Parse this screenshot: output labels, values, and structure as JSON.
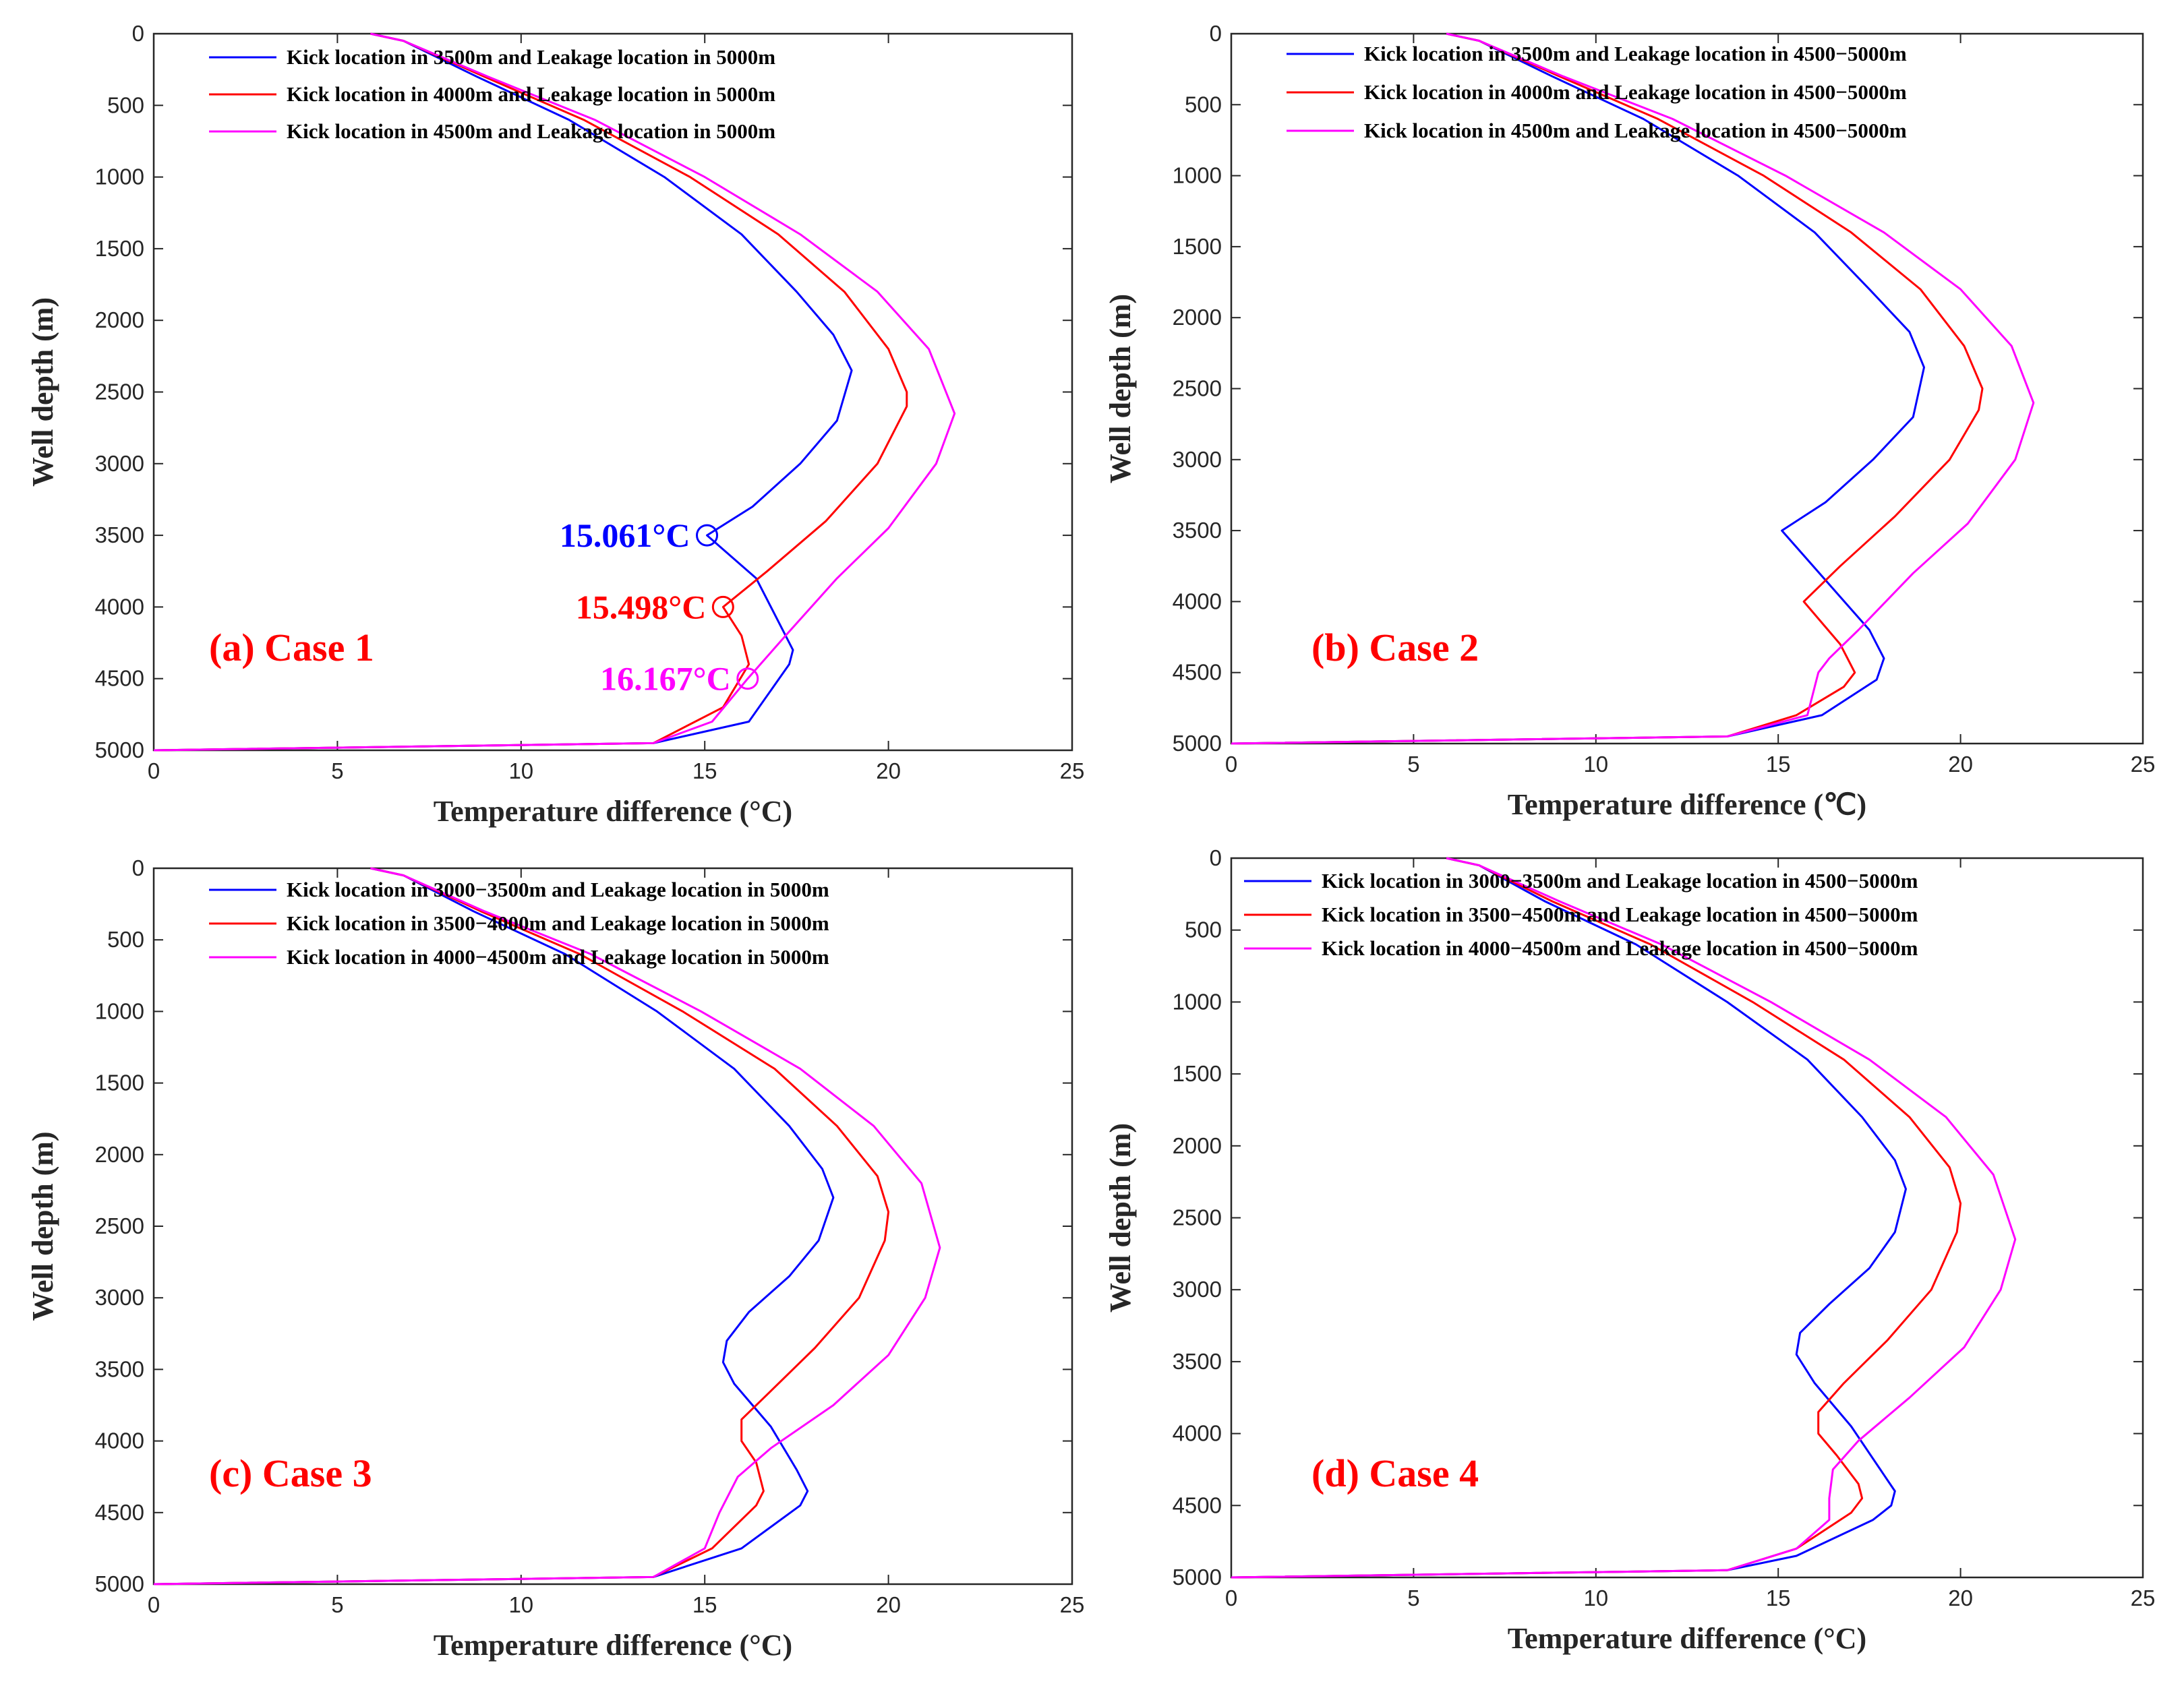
{
  "chart_data": [
    {
      "type": "line",
      "panel": "a",
      "case_label": "(a) Case 1",
      "xlabel": "Temperature difference (°C)",
      "ylabel": "Well depth (m)",
      "xlim": [
        0,
        25
      ],
      "ylim": [
        0,
        5000
      ],
      "y_reversed": true,
      "xticks": [
        "0",
        "5",
        "10",
        "15",
        "20",
        "25"
      ],
      "yticks": [
        "0",
        "500",
        "1000",
        "1500",
        "2000",
        "2500",
        "3000",
        "3500",
        "4000",
        "4500",
        "5000"
      ],
      "series": [
        {
          "name": "Kick location in 3500m and Leakage location in 5000m",
          "color": "#0000ff",
          "x": [
            5.9,
            6.8,
            8.8,
            11.3,
            13.9,
            16.0,
            17.5,
            18.5,
            19.0,
            18.6,
            17.6,
            16.3,
            15.06,
            16.4,
            17.4,
            17.3,
            16.2,
            13.6,
            0
          ],
          "y": [
            0,
            50,
            300,
            600,
            1000,
            1400,
            1800,
            2100,
            2350,
            2700,
            3000,
            3300,
            3500,
            3800,
            4300,
            4400,
            4800,
            4950,
            5000
          ]
        },
        {
          "name": "Kick location in 4000m and Leakage location in 5000m",
          "color": "#ff0000",
          "x": [
            5.9,
            6.8,
            9.0,
            11.7,
            14.6,
            17.0,
            18.8,
            20.0,
            20.5,
            20.5,
            19.7,
            18.3,
            16.7,
            15.5,
            16.0,
            16.2,
            15.5,
            13.6,
            0
          ],
          "y": [
            0,
            50,
            300,
            600,
            1000,
            1400,
            1800,
            2200,
            2500,
            2600,
            3000,
            3400,
            3750,
            4000,
            4200,
            4400,
            4700,
            4950,
            5000
          ]
        },
        {
          "name": "Kick location in 4500m and Leakage location in 5000m",
          "color": "#ff00ff",
          "x": [
            5.9,
            6.8,
            9.1,
            12.0,
            15.0,
            17.6,
            19.7,
            21.1,
            21.8,
            21.3,
            20.0,
            18.6,
            17.2,
            16.17,
            15.2,
            13.6,
            0
          ],
          "y": [
            0,
            50,
            300,
            600,
            1000,
            1400,
            1800,
            2200,
            2650,
            3000,
            3450,
            3800,
            4200,
            4500,
            4800,
            4950,
            5000
          ]
        }
      ],
      "markers": [
        {
          "label": "15.061°C",
          "x": 15.061,
          "y": 3500,
          "color": "#0000ff"
        },
        {
          "label": "15.498°C",
          "x": 15.498,
          "y": 4000,
          "color": "#ff0000"
        },
        {
          "label": "16.167°C",
          "x": 16.167,
          "y": 4500,
          "color": "#ff00ff"
        }
      ]
    },
    {
      "type": "line",
      "panel": "b",
      "case_label": "(b) Case 2",
      "xlabel": "Temperature difference (℃)",
      "ylabel": "Well depth (m)",
      "xlim": [
        0,
        25
      ],
      "ylim": [
        0,
        5000
      ],
      "y_reversed": true,
      "xticks": [
        "0",
        "5",
        "10",
        "15",
        "20",
        "25"
      ],
      "yticks": [
        "0",
        "500",
        "1000",
        "1500",
        "2000",
        "2500",
        "3000",
        "3500",
        "4000",
        "4500",
        "5000"
      ],
      "series": [
        {
          "name": "Kick location in 3500m and Leakage location in 4500−5000m",
          "color": "#0000ff",
          "x": [
            5.9,
            6.8,
            8.8,
            11.3,
            13.9,
            16.0,
            17.5,
            18.6,
            19.0,
            18.7,
            17.6,
            16.3,
            15.1,
            17.5,
            17.9,
            17.7,
            16.2,
            13.6,
            0
          ],
          "y": [
            0,
            50,
            300,
            600,
            1000,
            1400,
            1800,
            2100,
            2350,
            2700,
            3000,
            3300,
            3500,
            4200,
            4400,
            4550,
            4800,
            4950,
            5000
          ]
        },
        {
          "name": "Kick location in 4000m and Leakage location in 4500−5000m",
          "color": "#ff0000",
          "x": [
            5.9,
            6.8,
            9.0,
            11.7,
            14.6,
            17.0,
            18.9,
            20.1,
            20.6,
            20.5,
            19.7,
            18.2,
            16.7,
            15.7,
            16.7,
            17.1,
            16.8,
            15.5,
            13.6,
            0
          ],
          "y": [
            0,
            50,
            300,
            600,
            1000,
            1400,
            1800,
            2200,
            2500,
            2650,
            3000,
            3400,
            3750,
            4000,
            4300,
            4500,
            4600,
            4800,
            4950,
            5000
          ]
        },
        {
          "name": "Kick location in 4500m and Leakage location in 4500−5000m",
          "color": "#ff00ff",
          "x": [
            5.9,
            6.8,
            9.1,
            12.1,
            15.2,
            17.9,
            20.0,
            21.4,
            22.0,
            21.5,
            20.2,
            18.7,
            17.2,
            16.4,
            16.1,
            15.8,
            13.6,
            0
          ],
          "y": [
            0,
            50,
            300,
            600,
            1000,
            1400,
            1800,
            2200,
            2600,
            3000,
            3450,
            3800,
            4200,
            4400,
            4500,
            4800,
            4950,
            5000
          ]
        }
      ]
    },
    {
      "type": "line",
      "panel": "c",
      "case_label": "(c) Case 3",
      "xlabel": "Temperature difference (°C)",
      "ylabel": "Well depth (m)",
      "xlim": [
        0,
        25
      ],
      "ylim": [
        0,
        5000
      ],
      "y_reversed": true,
      "xticks": [
        "0",
        "5",
        "10",
        "15",
        "20",
        "25"
      ],
      "yticks": [
        "0",
        "500",
        "1000",
        "1500",
        "2000",
        "2500",
        "3000",
        "3500",
        "4000",
        "4500",
        "5000"
      ],
      "series": [
        {
          "name": "Kick location in 3000−3500m and Leakage location in 5000m",
          "color": "#0000ff",
          "x": [
            5.9,
            6.8,
            8.7,
            11.2,
            13.7,
            15.8,
            17.3,
            18.2,
            18.5,
            18.1,
            17.3,
            16.2,
            15.6,
            15.5,
            15.8,
            16.8,
            17.5,
            17.8,
            17.6,
            16.0,
            13.6,
            0
          ],
          "y": [
            0,
            50,
            300,
            600,
            1000,
            1400,
            1800,
            2100,
            2300,
            2600,
            2850,
            3100,
            3300,
            3450,
            3600,
            3900,
            4200,
            4350,
            4450,
            4750,
            4950,
            5000
          ]
        },
        {
          "name": "Kick location in 3500−4000m and Leakage location in 5000m",
          "color": "#ff0000",
          "x": [
            5.9,
            6.8,
            8.9,
            11.6,
            14.4,
            16.9,
            18.6,
            19.7,
            20.0,
            19.9,
            19.2,
            18.0,
            16.8,
            16.0,
            16.0,
            16.4,
            16.6,
            16.4,
            15.2,
            13.6,
            0
          ],
          "y": [
            0,
            50,
            300,
            600,
            1000,
            1400,
            1800,
            2150,
            2400,
            2600,
            3000,
            3350,
            3650,
            3850,
            4000,
            4150,
            4350,
            4450,
            4750,
            4950,
            5000
          ]
        },
        {
          "name": "Kick location in 4000−4500m and Leakage location in 5000m",
          "color": "#ff00ff",
          "x": [
            5.9,
            6.8,
            9.0,
            11.9,
            14.9,
            17.6,
            19.6,
            20.9,
            21.4,
            21.0,
            20.0,
            18.5,
            16.8,
            15.9,
            15.6,
            15.4,
            15.0,
            13.6,
            0
          ],
          "y": [
            0,
            50,
            300,
            600,
            1000,
            1400,
            1800,
            2200,
            2650,
            3000,
            3400,
            3750,
            4050,
            4250,
            4400,
            4500,
            4750,
            4950,
            5000
          ]
        }
      ]
    },
    {
      "type": "line",
      "panel": "d",
      "case_label": "(d) Case 4",
      "xlabel": "Temperature difference (°C)",
      "ylabel": "Well depth (m)",
      "xlim": [
        0,
        25
      ],
      "ylim": [
        0,
        5000
      ],
      "y_reversed": true,
      "xticks": [
        "0",
        "5",
        "10",
        "15",
        "20",
        "25"
      ],
      "yticks": [
        "0",
        "500",
        "1000",
        "1500",
        "2000",
        "2500",
        "3000",
        "3500",
        "4000",
        "4500",
        "5000"
      ],
      "series": [
        {
          "name": "Kick location in 3000−3500m and Leakage location in 4500−5000m",
          "color": "#0000ff",
          "x": [
            5.9,
            6.8,
            8.6,
            11.1,
            13.6,
            15.8,
            17.3,
            18.2,
            18.5,
            18.2,
            17.5,
            16.4,
            15.6,
            15.5,
            16.0,
            17.0,
            17.8,
            18.2,
            18.1,
            17.6,
            15.5,
            13.6,
            0
          ],
          "y": [
            0,
            50,
            300,
            600,
            1000,
            1400,
            1800,
            2100,
            2300,
            2600,
            2850,
            3100,
            3300,
            3450,
            3650,
            3950,
            4250,
            4400,
            4500,
            4600,
            4850,
            4950,
            5000
          ]
        },
        {
          "name": "Kick location in 3500−4500m and Leakage location in 4500−5000m",
          "color": "#ff0000",
          "x": [
            5.9,
            6.8,
            8.8,
            11.5,
            14.3,
            16.8,
            18.6,
            19.7,
            20.0,
            19.9,
            19.2,
            18.0,
            16.8,
            16.1,
            16.1,
            16.6,
            17.2,
            17.3,
            17.0,
            15.5,
            13.6,
            0
          ],
          "y": [
            0,
            50,
            300,
            600,
            1000,
            1400,
            1800,
            2150,
            2400,
            2600,
            3000,
            3350,
            3650,
            3850,
            4000,
            4150,
            4350,
            4450,
            4550,
            4800,
            4950,
            5000
          ]
        },
        {
          "name": "Kick location in 4000−4500m and Leakage location in 4500−5000m",
          "color": "#ff00ff",
          "x": [
            5.9,
            6.8,
            9.0,
            11.8,
            14.8,
            17.5,
            19.6,
            20.9,
            21.5,
            21.1,
            20.1,
            18.6,
            17.2,
            16.5,
            16.4,
            16.4,
            15.5,
            13.6,
            0
          ],
          "y": [
            0,
            50,
            300,
            600,
            1000,
            1400,
            1800,
            2200,
            2650,
            3000,
            3400,
            3750,
            4050,
            4250,
            4450,
            4600,
            4800,
            4950,
            5000
          ]
        }
      ]
    }
  ]
}
